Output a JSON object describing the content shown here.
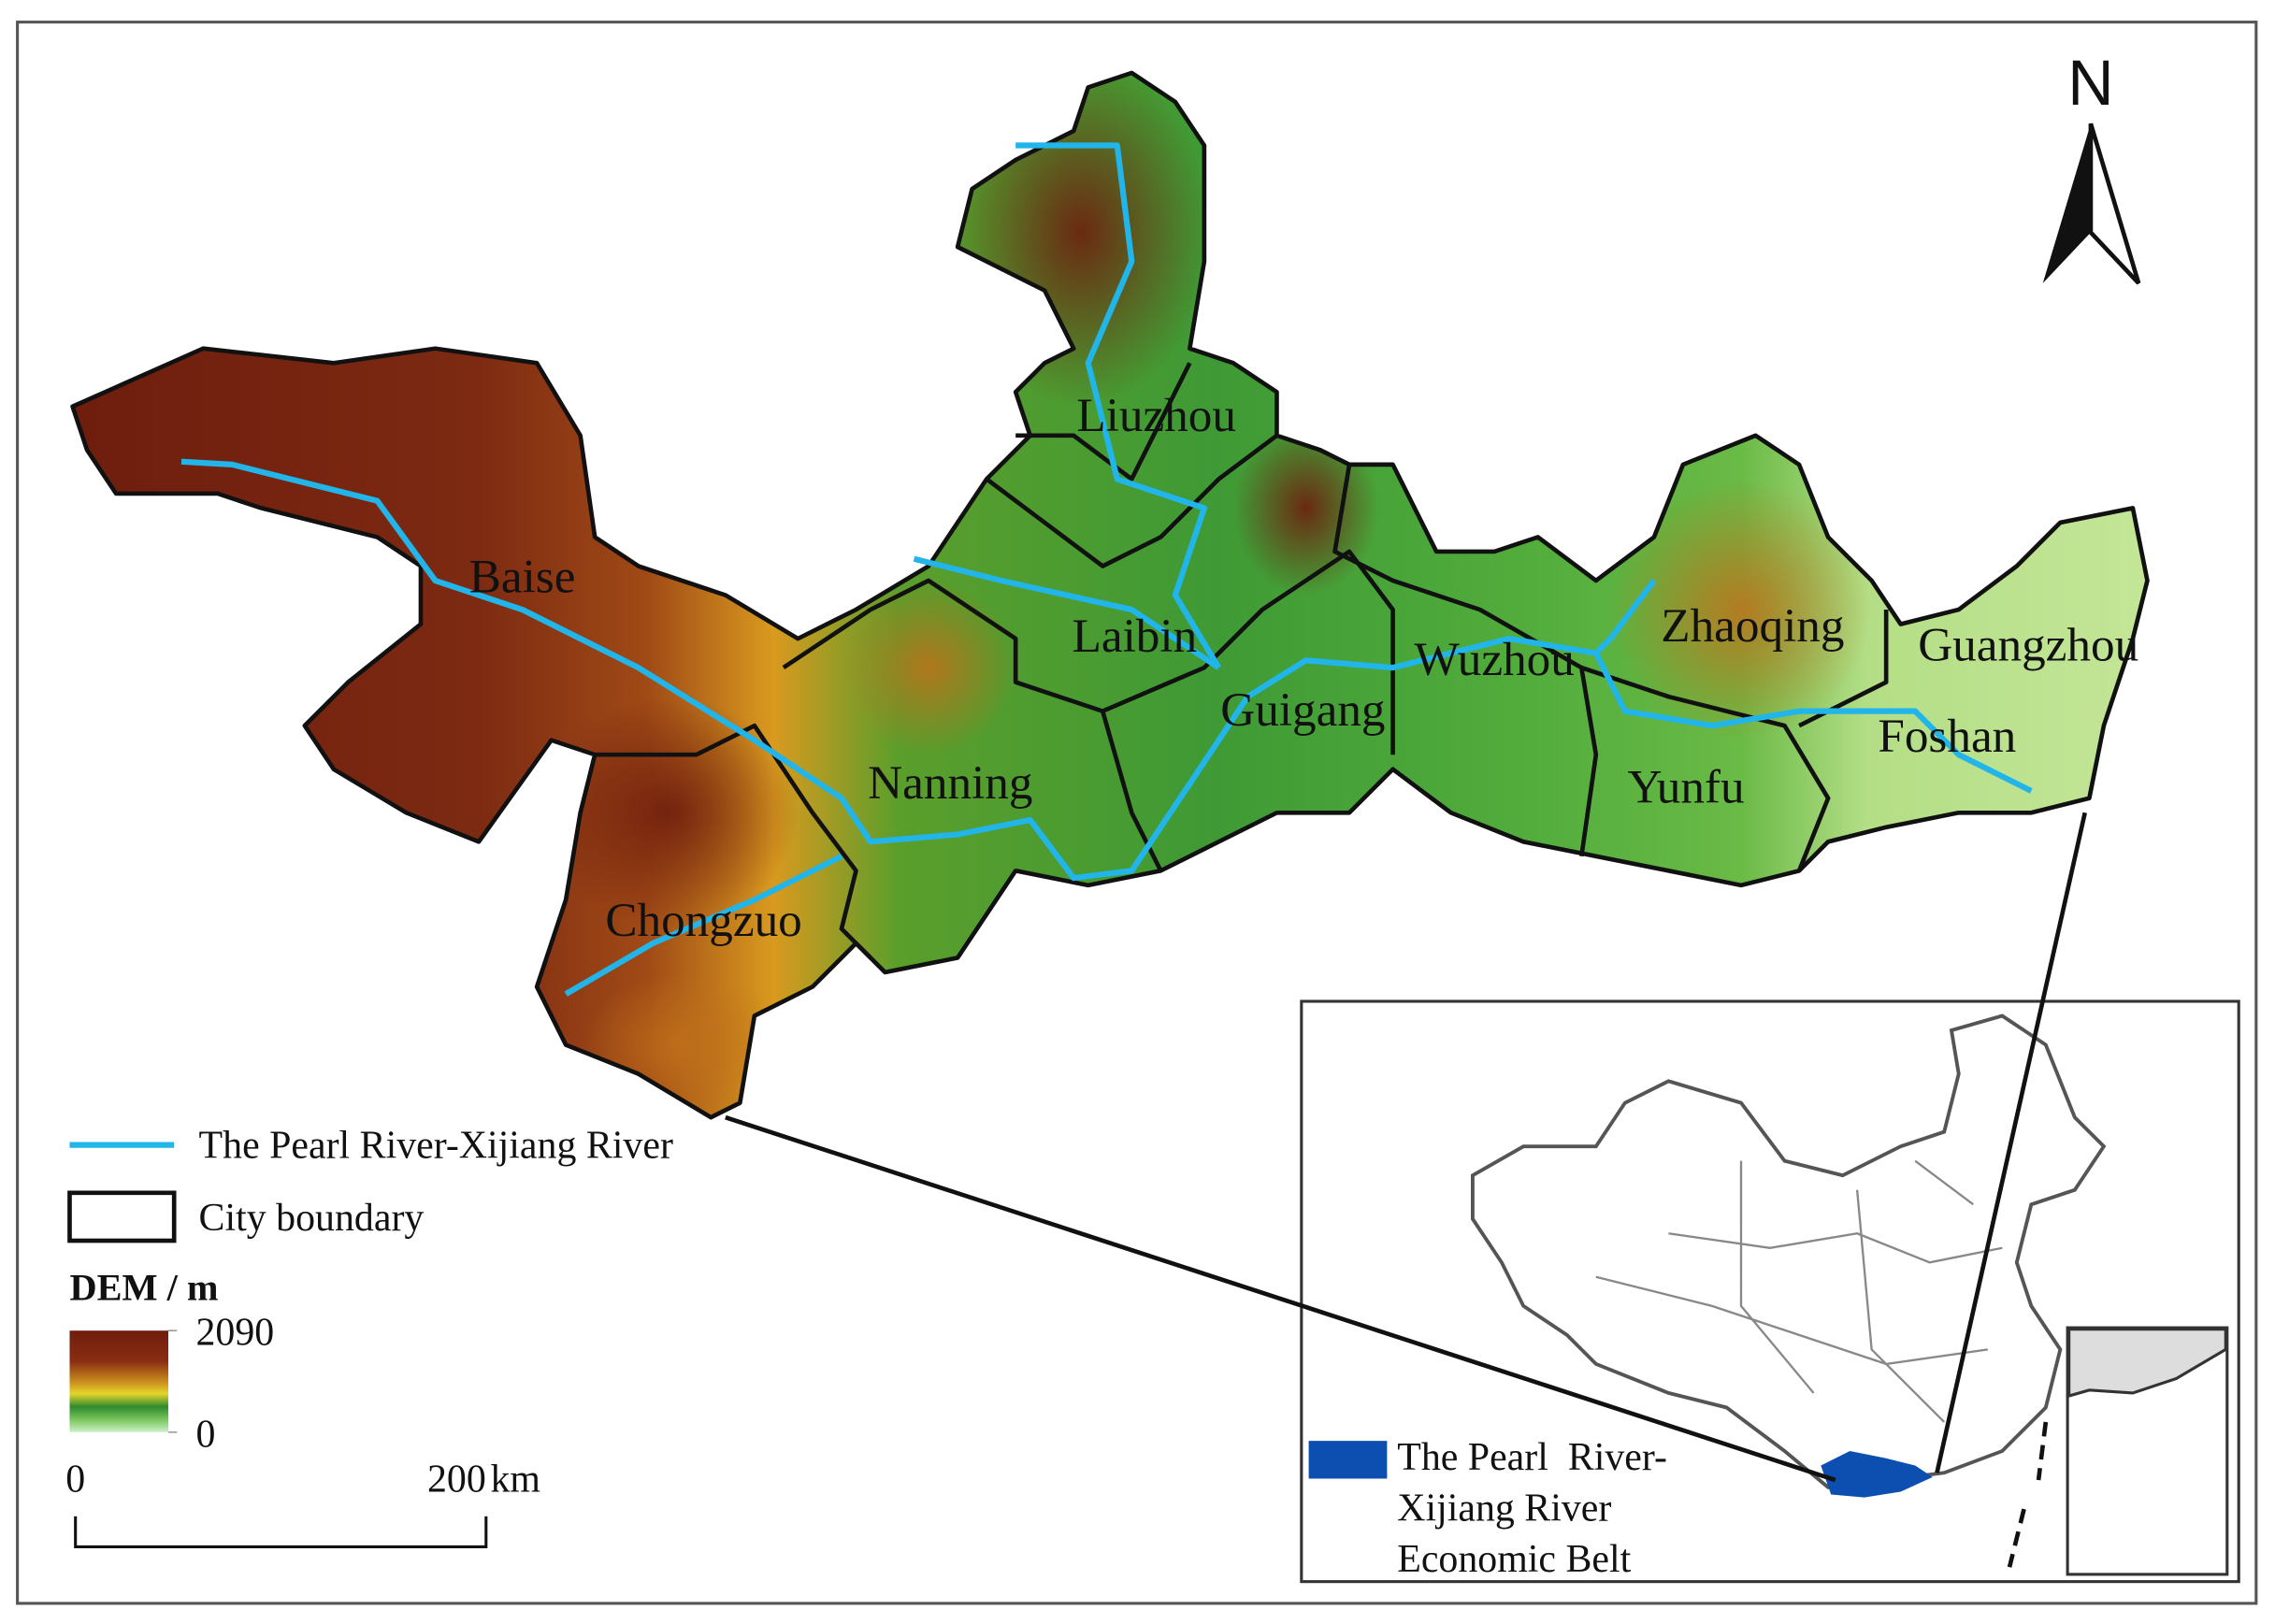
{
  "north_arrow": {
    "label": "N"
  },
  "cities": [
    {
      "name": "Liuzhou"
    },
    {
      "name": "Baise"
    },
    {
      "name": "Laibin"
    },
    {
      "name": "Wuzhou"
    },
    {
      "name": "Zhaoqing"
    },
    {
      "name": "Guangzhou"
    },
    {
      "name": "Guigang"
    },
    {
      "name": "Foshan"
    },
    {
      "name": "Nanning"
    },
    {
      "name": "Yunfu"
    },
    {
      "name": "Chongzuo"
    }
  ],
  "legend": {
    "items": [
      {
        "label": "The Pearl River-Xijiang River"
      },
      {
        "label": "City boundary"
      }
    ],
    "dem": {
      "title": "DEM / m",
      "max": 2090,
      "min": 0
    }
  },
  "scale_bar": {
    "ticks": [
      0,
      200
    ],
    "unit": "km"
  },
  "inset": {
    "legend_lines": [
      "The Pearl  River-",
      "Xijiang River",
      "Economic Belt"
    ]
  }
}
